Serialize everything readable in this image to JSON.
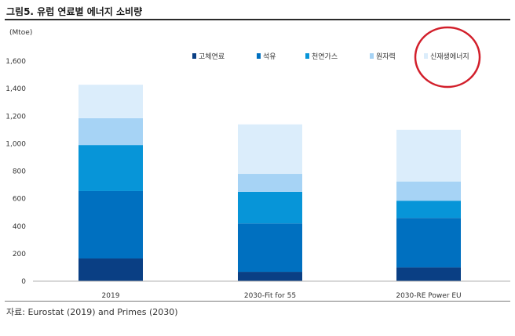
{
  "figure": {
    "title": "그림5. 유럽 연료별 에너지 소비량",
    "source": "자료: Eurostat (2019) and Primes (2030)"
  },
  "chart_data": {
    "type": "bar",
    "stacked": true,
    "unit_label": "(Mtoe)",
    "categories": [
      "2019",
      "2030-Fit for 55",
      "2030-RE Power EU"
    ],
    "series": [
      {
        "name": "고체연료",
        "color": "#0a3f84",
        "values": [
          165,
          68,
          100
        ]
      },
      {
        "name": "석유",
        "color": "#0070c0",
        "values": [
          490,
          352,
          360
        ]
      },
      {
        "name": "천연가스",
        "color": "#0795d8",
        "values": [
          335,
          230,
          125
        ]
      },
      {
        "name": "원자력",
        "color": "#a6d3f5",
        "values": [
          195,
          130,
          140
        ]
      },
      {
        "name": "신재생에너지",
        "color": "#dbedfb",
        "values": [
          243,
          360,
          375
        ]
      }
    ],
    "ylim": [
      0,
      1600
    ],
    "yticks": [
      "0",
      "200",
      "400",
      "600",
      "800",
      "1,000",
      "1,200",
      "1,400",
      "1,600"
    ],
    "grid": false,
    "legend_position": "top-right",
    "annotation": "red circle around 신재생에너지 legend entry"
  }
}
